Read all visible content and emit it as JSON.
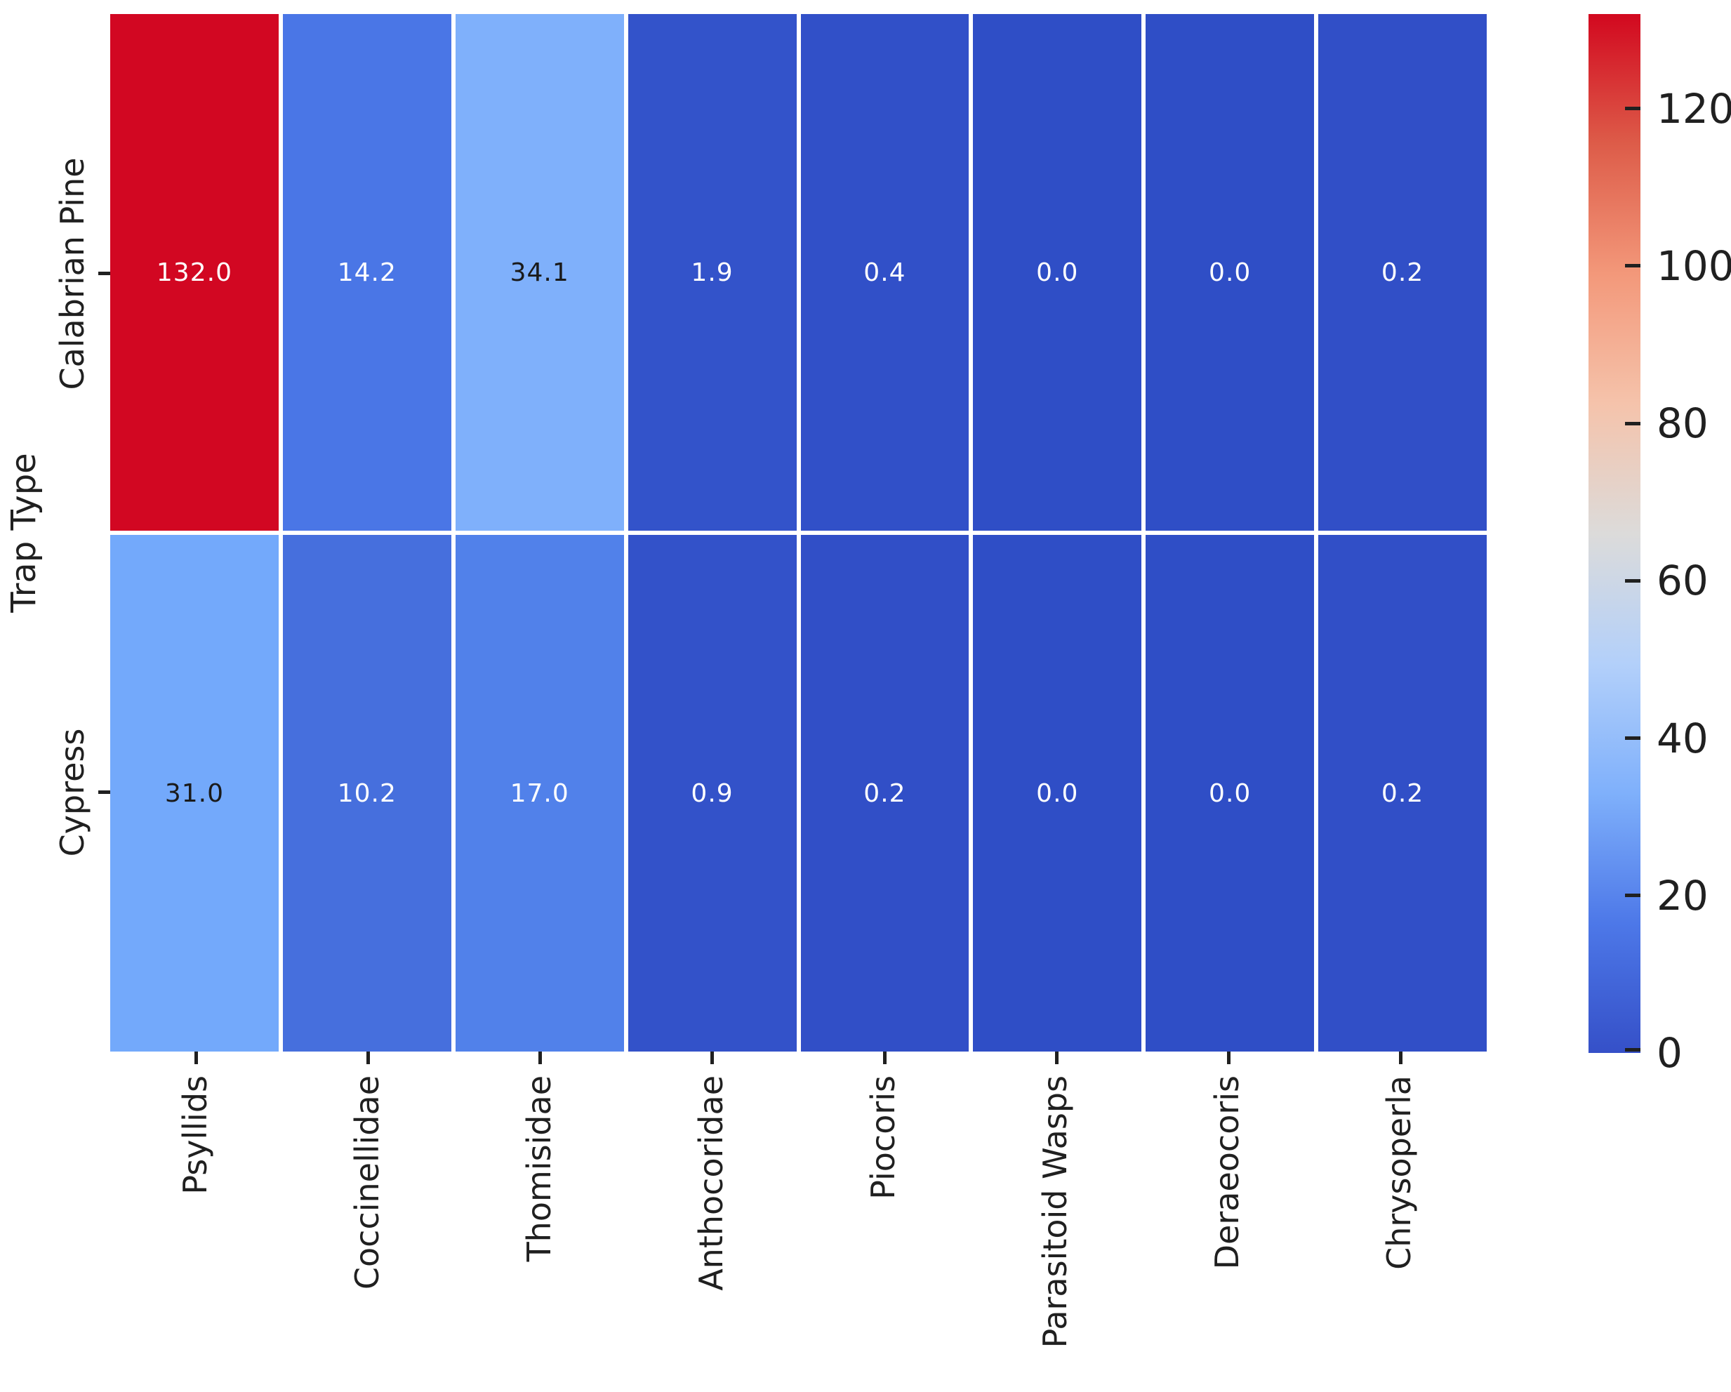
{
  "chart_data": {
    "type": "heatmap",
    "colormap": "coolwarm",
    "title": "",
    "xlabel": "",
    "ylabel": "Trap Type",
    "rows": [
      "Calabrian Pine",
      "Cypress"
    ],
    "columns": [
      "Psyllids",
      "Coccinellidae",
      "Thomisidae",
      "Anthocoridae",
      "Piocoris",
      "Parasitoid Wasps",
      "Deraeocoris",
      "Chrysoperla"
    ],
    "values": [
      [
        132.0,
        14.2,
        34.1,
        1.9,
        0.4,
        0.0,
        0.0,
        0.2
      ],
      [
        31.0,
        10.2,
        17.0,
        0.9,
        0.2,
        0.0,
        0.0,
        0.2
      ]
    ],
    "cell_labels": [
      [
        "132.0",
        "14.2",
        "34.1",
        "1.9",
        "0.4",
        "0.0",
        "0.0",
        "0.2"
      ],
      [
        "31.0",
        "10.2",
        "17.0",
        "0.9",
        "0.2",
        "0.0",
        "0.0",
        "0.2"
      ]
    ],
    "cell_colors": [
      [
        "#d20722",
        "#4a76e6",
        "#7fb0fb",
        "#3353ca",
        "#3150c8",
        "#2f4ec6",
        "#2f4ec6",
        "#314fc7"
      ],
      [
        "#73a9fb",
        "#466fdd",
        "#5181ea",
        "#3352c9",
        "#314fc7",
        "#2f4ec6",
        "#2f4ec6",
        "#314fc7"
      ]
    ],
    "cell_text_colors": [
      [
        "#ffffff",
        "#ffffff",
        "#1a1a1a",
        "#ffffff",
        "#ffffff",
        "#ffffff",
        "#ffffff",
        "#ffffff"
      ],
      [
        "#1a1a1a",
        "#ffffff",
        "#ffffff",
        "#ffffff",
        "#ffffff",
        "#ffffff",
        "#ffffff",
        "#ffffff"
      ]
    ],
    "grid_line_color": "#ffffff",
    "text_color": "#202020",
    "colorbar": {
      "vmin": 0,
      "vmax": 132,
      "tick_values": [
        0,
        20,
        40,
        60,
        80,
        100,
        120
      ],
      "tick_labels": [
        "0",
        "20",
        "40",
        "60",
        "80",
        "100",
        "120"
      ],
      "gradient_stops": [
        {
          "pos": 0,
          "color": "#3550c8"
        },
        {
          "pos": 12.5,
          "color": "#4d78e8"
        },
        {
          "pos": 25,
          "color": "#7fb0fb"
        },
        {
          "pos": 37.5,
          "color": "#b3d0fa"
        },
        {
          "pos": 50,
          "color": "#dcdbda"
        },
        {
          "pos": 62.5,
          "color": "#f5c3ab"
        },
        {
          "pos": 75,
          "color": "#f3987a"
        },
        {
          "pos": 87.5,
          "color": "#dd5c49"
        },
        {
          "pos": 100,
          "color": "#d2081f"
        }
      ]
    }
  }
}
